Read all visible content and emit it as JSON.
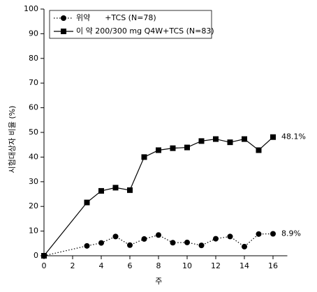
{
  "chart_data": {
    "type": "line",
    "x_label": "주",
    "y_label": "시험대상자 비율 (%)",
    "x": [
      0,
      3,
      4,
      5,
      6,
      7,
      8,
      9,
      10,
      11,
      12,
      13,
      14,
      15,
      16
    ],
    "series": [
      {
        "name": "위약      +TCS (N=78)",
        "color": "#000000",
        "line_style": "dotted",
        "marker": "circle",
        "values": [
          0,
          4.0,
          5.2,
          7.8,
          4.3,
          6.8,
          8.4,
          5.3,
          5.4,
          4.2,
          6.9,
          7.8,
          3.7,
          8.8,
          8.9
        ],
        "value_labels": [
          null,
          null,
          null,
          null,
          null,
          null,
          null,
          null,
          null,
          null,
          null,
          null,
          null,
          null,
          "8.9%"
        ]
      },
      {
        "name": "이 약 200/300 mg Q4W+TCS (N=83)",
        "color": "#000000",
        "line_style": "solid",
        "marker": "square",
        "values": [
          0,
          21.6,
          26.3,
          27.6,
          26.6,
          40.0,
          42.8,
          43.6,
          43.9,
          46.5,
          47.3,
          46.0,
          47.3,
          42.8,
          48.1
        ],
        "value_labels": [
          null,
          null,
          null,
          null,
          null,
          null,
          null,
          null,
          null,
          null,
          null,
          null,
          null,
          null,
          "48.1%"
        ]
      }
    ],
    "xlim": [
      0,
      17
    ],
    "xticks": [
      0,
      2,
      4,
      6,
      8,
      10,
      12,
      14,
      16
    ],
    "ylim": [
      0,
      100
    ],
    "yticks": [
      0,
      10,
      20,
      30,
      40,
      50,
      60,
      70,
      80,
      90,
      100
    ],
    "legend": "top-left"
  }
}
